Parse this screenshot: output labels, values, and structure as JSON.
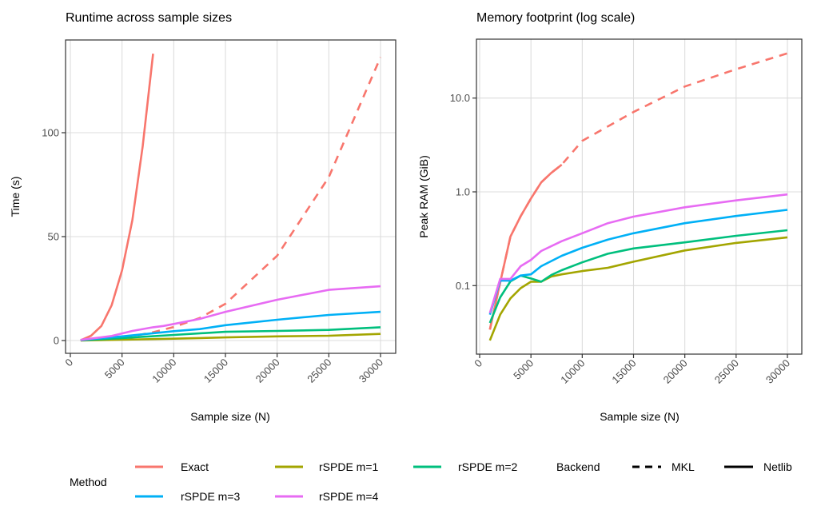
{
  "colors": {
    "Exact": "#F8766D",
    "rSPDE m=1": "#A3A500",
    "rSPDE m=2": "#00BF7D",
    "rSPDE m=3": "#00B0F6",
    "rSPDE m=4": "#E76BF3"
  },
  "legend": {
    "method_title": "Method",
    "backend_title": "Backend",
    "methods": [
      "Exact",
      "rSPDE m=1",
      "rSPDE m=2",
      "rSPDE m=3",
      "rSPDE m=4"
    ],
    "backends": [
      {
        "label": "MKL",
        "linetype": "dashed"
      },
      {
        "label": "Netlib",
        "linetype": "solid"
      }
    ],
    "position": "bottom"
  },
  "chart_data": [
    {
      "type": "line",
      "title": "Runtime across sample sizes",
      "xlabel": "Sample size (N)",
      "ylabel": "Time (s)",
      "xlim": [
        0,
        30000
      ],
      "ylim": [
        -6.8,
        143
      ],
      "yscale": "linear",
      "grid": true,
      "xticks": [
        "0",
        "5000",
        "10000",
        "15000",
        "20000",
        "25000",
        "30000"
      ],
      "yticks": [
        "0",
        "50",
        "100"
      ],
      "series": [
        {
          "method": "Exact",
          "backend": "MKL",
          "x": [
            1000,
            2000,
            3000,
            4000,
            5000,
            6000,
            7000,
            8000,
            10000,
            12500,
            15000,
            20000,
            25000,
            30000
          ],
          "y": [
            0.05,
            0.2,
            0.5,
            0.9,
            1.5,
            2.2,
            3,
            4,
            6.5,
            10.8,
            17.7,
            40.8,
            78.6,
            136.3
          ]
        },
        {
          "method": "Exact",
          "backend": "Netlib",
          "x": [
            1000,
            2000,
            3000,
            4000,
            5000,
            6000,
            7000,
            8000
          ],
          "y": [
            0.1,
            2.3,
            7,
            17,
            33.8,
            58,
            93.5,
            138
          ]
        },
        {
          "method": "rSPDE m=1",
          "backend": "Netlib",
          "x": [
            1000,
            5000,
            10000,
            15000,
            20000,
            25000,
            30000
          ],
          "y": [
            0.05,
            0.4,
            0.9,
            1.5,
            2.0,
            2.3,
            3.2
          ]
        },
        {
          "method": "rSPDE m=2",
          "backend": "Netlib",
          "x": [
            1000,
            5000,
            10000,
            15000,
            20000,
            25000,
            30000
          ],
          "y": [
            0.1,
            1.2,
            2.7,
            4.2,
            4.6,
            5.1,
            6.4
          ]
        },
        {
          "method": "rSPDE m=3",
          "backend": "Netlib",
          "x": [
            1000,
            5000,
            10000,
            12500,
            15000,
            20000,
            25000,
            30000
          ],
          "y": [
            0.2,
            2.0,
            4.5,
            5.5,
            7.4,
            10,
            12.3,
            13.8
          ]
        },
        {
          "method": "rSPDE m=4",
          "backend": "Netlib",
          "x": [
            1000,
            4000,
            6000,
            8000,
            9000,
            12500,
            15000,
            20000,
            25000,
            30000
          ],
          "y": [
            0.3,
            2.2,
            4.6,
            6.4,
            7,
            10.4,
            13.8,
            19.6,
            24.4,
            26.1
          ]
        }
      ]
    },
    {
      "type": "line",
      "title": "Memory footprint (log scale)",
      "xlabel": "Sample size (N)",
      "ylabel": "Peak RAM (GiB)",
      "xlim": [
        0,
        30000
      ],
      "ylim": [
        0.0185,
        42.5
      ],
      "yscale": "log10",
      "grid": true,
      "xticks": [
        "0",
        "5000",
        "10000",
        "15000",
        "20000",
        "25000",
        "30000"
      ],
      "yticks": [
        "0.1",
        "1.0",
        "10.0"
      ],
      "series": [
        {
          "method": "Exact",
          "backend": "MKL",
          "x": [
            1000,
            2000,
            3000,
            4000,
            5000,
            6000,
            7000,
            8000,
            10000,
            15000,
            20000,
            25000,
            30000
          ],
          "y": [
            0.034,
            0.108,
            0.333,
            0.55,
            0.85,
            1.26,
            1.6,
            1.95,
            3.5,
            7.1,
            13.3,
            20.3,
            30
          ]
        },
        {
          "method": "Exact",
          "backend": "Netlib",
          "x": [
            1000,
            2000,
            3000,
            4000,
            5000,
            6000,
            7000,
            8000
          ],
          "y": [
            0.034,
            0.108,
            0.333,
            0.55,
            0.85,
            1.26,
            1.6,
            1.95
          ]
        },
        {
          "method": "rSPDE m=1",
          "backend": "Netlib",
          "x": [
            1000,
            2000,
            3000,
            4000,
            5000,
            6000,
            7000,
            8000,
            10000,
            12500,
            15000,
            20000,
            25000,
            30000
          ],
          "y": [
            0.026,
            0.049,
            0.073,
            0.094,
            0.11,
            0.11,
            0.125,
            0.132,
            0.143,
            0.155,
            0.18,
            0.237,
            0.285,
            0.327
          ]
        },
        {
          "method": "rSPDE m=2",
          "backend": "Netlib",
          "x": [
            1000,
            2000,
            3000,
            4000,
            5000,
            6000,
            7000,
            8000,
            10000,
            12500,
            15000,
            20000,
            25000,
            30000
          ],
          "y": [
            0.04,
            0.075,
            0.111,
            0.128,
            0.119,
            0.11,
            0.13,
            0.146,
            0.177,
            0.219,
            0.249,
            0.289,
            0.34,
            0.39
          ]
        },
        {
          "method": "rSPDE m=3",
          "backend": "Netlib",
          "x": [
            1000,
            2000,
            3000,
            4000,
            5000,
            6000,
            8000,
            10000,
            12500,
            15000,
            20000,
            25000,
            30000
          ],
          "y": [
            0.049,
            0.113,
            0.113,
            0.128,
            0.132,
            0.161,
            0.208,
            0.253,
            0.31,
            0.362,
            0.463,
            0.553,
            0.643
          ]
        },
        {
          "method": "rSPDE m=4",
          "backend": "Netlib",
          "x": [
            1000,
            2000,
            3000,
            4000,
            5000,
            6000,
            8000,
            10000,
            12500,
            15000,
            20000,
            25000,
            30000
          ],
          "y": [
            0.051,
            0.118,
            0.118,
            0.161,
            0.188,
            0.234,
            0.298,
            0.362,
            0.463,
            0.544,
            0.685,
            0.81,
            0.94
          ]
        }
      ]
    }
  ]
}
